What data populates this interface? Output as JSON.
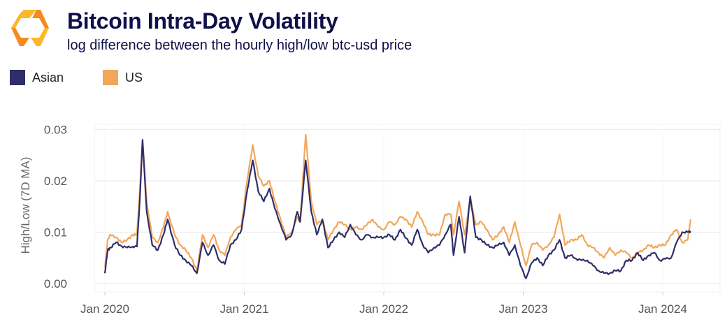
{
  "header": {
    "logo": "hexagon-logo-icon",
    "title": "Bitcoin Intra-Day Volatility",
    "subtitle": "log difference between the hourly high/low btc-usd price"
  },
  "colors": {
    "asian": "#2e2e6b",
    "us": "#f2a65a",
    "grid": "#ececec",
    "title": "#0f0f4a"
  },
  "chart_data": {
    "type": "line",
    "title": "Bitcoin Intra-Day Volatility",
    "subtitle": "log difference between the hourly high/low btc-usd price",
    "xlabel": "",
    "ylabel": "High/Low (7D MA)",
    "ylim": [
      0,
      0.03
    ],
    "yticks": [
      "0.00",
      "0.01",
      "0.02",
      "0.03"
    ],
    "ytick_values": [
      0,
      0.01,
      0.02,
      0.03
    ],
    "xticks": [
      "Jan 2020",
      "Jan 2021",
      "Jan 2022",
      "Jan 2023",
      "Jan 2024"
    ],
    "xtick_values": [
      2020.0,
      2021.0,
      2022.0,
      2023.0,
      2024.0
    ],
    "xlim": [
      2019.8,
      2024.45
    ],
    "grid": true,
    "legend": "top-left",
    "x": [
      2020.0,
      2020.02,
      2020.04,
      2020.08,
      2020.12,
      2020.16,
      2020.2,
      2020.23,
      2020.25,
      2020.27,
      2020.3,
      2020.34,
      2020.38,
      2020.42,
      2020.45,
      2020.5,
      2020.54,
      2020.58,
      2020.62,
      2020.66,
      2020.7,
      2020.74,
      2020.78,
      2020.82,
      2020.86,
      2020.9,
      2020.94,
      2020.98,
      2021.02,
      2021.06,
      2021.1,
      2021.14,
      2021.18,
      2021.22,
      2021.26,
      2021.3,
      2021.34,
      2021.38,
      2021.4,
      2021.44,
      2021.48,
      2021.52,
      2021.56,
      2021.6,
      2021.64,
      2021.68,
      2021.72,
      2021.76,
      2021.8,
      2021.84,
      2021.88,
      2021.92,
      2021.96,
      2022.0,
      2022.04,
      2022.08,
      2022.12,
      2022.16,
      2022.2,
      2022.24,
      2022.28,
      2022.32,
      2022.36,
      2022.4,
      2022.44,
      2022.48,
      2022.5,
      2022.54,
      2022.58,
      2022.62,
      2022.66,
      2022.7,
      2022.74,
      2022.78,
      2022.82,
      2022.86,
      2022.9,
      2022.94,
      2022.98,
      2023.02,
      2023.06,
      2023.1,
      2023.14,
      2023.18,
      2023.22,
      2023.26,
      2023.3,
      2023.34,
      2023.38,
      2023.42,
      2023.46,
      2023.5,
      2023.54,
      2023.58,
      2023.62,
      2023.66,
      2023.7,
      2023.74,
      2023.78,
      2023.82,
      2023.86,
      2023.9,
      2023.94,
      2023.98,
      2024.02,
      2024.06,
      2024.1,
      2024.14,
      2024.18,
      2024.2
    ],
    "series": [
      {
        "name": "Asian",
        "color": "#2e2e6b",
        "values": [
          0.002,
          0.0065,
          0.007,
          0.008,
          0.0073,
          0.007,
          0.0072,
          0.0072,
          0.016,
          0.028,
          0.014,
          0.0075,
          0.0065,
          0.0095,
          0.0125,
          0.0075,
          0.0055,
          0.0045,
          0.0035,
          0.002,
          0.008,
          0.0055,
          0.0075,
          0.0045,
          0.0038,
          0.0075,
          0.0085,
          0.0105,
          0.018,
          0.024,
          0.018,
          0.016,
          0.0185,
          0.0145,
          0.0115,
          0.0085,
          0.0095,
          0.014,
          0.012,
          0.024,
          0.014,
          0.0095,
          0.0125,
          0.007,
          0.0085,
          0.01,
          0.009,
          0.0115,
          0.0095,
          0.0085,
          0.0095,
          0.009,
          0.009,
          0.009,
          0.0095,
          0.0085,
          0.0105,
          0.0088,
          0.0075,
          0.0105,
          0.0075,
          0.006,
          0.007,
          0.0075,
          0.0095,
          0.0115,
          0.0055,
          0.013,
          0.006,
          0.017,
          0.009,
          0.0085,
          0.0075,
          0.007,
          0.0075,
          0.008,
          0.0055,
          0.0075,
          0.0035,
          0.001,
          0.004,
          0.005,
          0.0035,
          0.0055,
          0.0065,
          0.0085,
          0.005,
          0.0055,
          0.0048,
          0.0045,
          0.0045,
          0.0035,
          0.0025,
          0.002,
          0.002,
          0.0025,
          0.0025,
          0.0045,
          0.0045,
          0.006,
          0.0045,
          0.0055,
          0.006,
          0.0045,
          0.0048,
          0.005,
          0.008,
          0.01,
          0.01,
          0.0102
        ]
      },
      {
        "name": "US",
        "color": "#f2a65a",
        "values": [
          0.003,
          0.0085,
          0.0095,
          0.009,
          0.008,
          0.0085,
          0.0095,
          0.0095,
          0.018,
          0.028,
          0.016,
          0.009,
          0.008,
          0.011,
          0.014,
          0.0095,
          0.0075,
          0.0065,
          0.005,
          0.0025,
          0.0095,
          0.007,
          0.0095,
          0.0065,
          0.0055,
          0.009,
          0.0105,
          0.0115,
          0.02,
          0.027,
          0.021,
          0.019,
          0.02,
          0.016,
          0.0125,
          0.009,
          0.01,
          0.013,
          0.012,
          0.029,
          0.016,
          0.0115,
          0.0125,
          0.0085,
          0.0105,
          0.012,
          0.0115,
          0.0105,
          0.011,
          0.0105,
          0.0115,
          0.0125,
          0.011,
          0.0105,
          0.012,
          0.0115,
          0.013,
          0.0125,
          0.011,
          0.014,
          0.012,
          0.0095,
          0.0095,
          0.0095,
          0.0135,
          0.0135,
          0.0095,
          0.016,
          0.0095,
          0.0165,
          0.0115,
          0.012,
          0.0105,
          0.0085,
          0.0095,
          0.011,
          0.008,
          0.012,
          0.0075,
          0.0035,
          0.0075,
          0.008,
          0.0065,
          0.0075,
          0.009,
          0.0135,
          0.0075,
          0.0085,
          0.0085,
          0.0095,
          0.0075,
          0.007,
          0.006,
          0.005,
          0.007,
          0.0055,
          0.0065,
          0.006,
          0.005,
          0.006,
          0.0065,
          0.0075,
          0.007,
          0.0075,
          0.0075,
          0.0095,
          0.0105,
          0.008,
          0.0085,
          0.0125
        ]
      }
    ]
  }
}
